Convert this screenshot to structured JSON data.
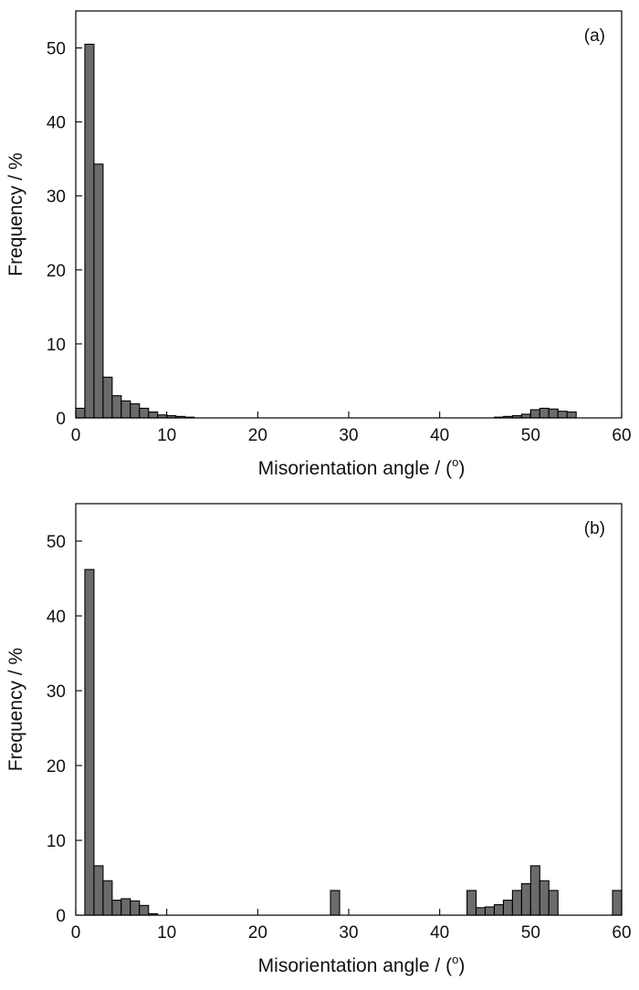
{
  "chart_data": [
    {
      "type": "bar",
      "panel_label": "(a)",
      "xlabel": "Misorientation angle / (",
      "xlabel_sup": "o",
      "xlabel_end": ")",
      "ylabel": "Frequency / %",
      "xlim": [
        0,
        60
      ],
      "ylim": [
        0,
        55
      ],
      "xticks": [
        0,
        10,
        20,
        30,
        40,
        50,
        60
      ],
      "yticks": [
        0,
        10,
        20,
        30,
        40,
        50
      ],
      "bin_width": 1,
      "x": [
        0.5,
        1.5,
        2.5,
        3.5,
        4.5,
        5.5,
        6.5,
        7.5,
        8.5,
        9.5,
        10.5,
        11.5,
        12.5,
        46.5,
        47.5,
        48.5,
        49.5,
        50.5,
        51.5,
        52.5,
        53.5,
        54.5
      ],
      "values": [
        1.3,
        50.5,
        34.3,
        5.5,
        3.0,
        2.3,
        1.9,
        1.3,
        0.8,
        0.4,
        0.3,
        0.2,
        0.1,
        0.1,
        0.2,
        0.3,
        0.5,
        1.1,
        1.3,
        1.2,
        0.9,
        0.8
      ]
    },
    {
      "type": "bar",
      "panel_label": "(b)",
      "xlabel": "Misorientation angle / (",
      "xlabel_sup": "o",
      "xlabel_end": ")",
      "ylabel": "Frequency / %",
      "xlim": [
        0,
        60
      ],
      "ylim": [
        0,
        55
      ],
      "xticks": [
        0,
        10,
        20,
        30,
        40,
        50,
        60
      ],
      "yticks": [
        0,
        10,
        20,
        30,
        40,
        50
      ],
      "bin_width": 1,
      "x": [
        1.5,
        2.5,
        3.5,
        4.5,
        5.5,
        6.5,
        7.5,
        8.5,
        28.5,
        43.5,
        44.5,
        45.5,
        46.5,
        47.5,
        48.5,
        49.5,
        50.5,
        51.5,
        52.5,
        59.5
      ],
      "values": [
        46.2,
        6.6,
        4.6,
        2.0,
        2.2,
        1.9,
        1.3,
        0.2,
        3.3,
        3.3,
        1.0,
        1.1,
        1.4,
        2.0,
        3.3,
        4.2,
        6.6,
        4.6,
        3.3,
        3.3
      ]
    }
  ]
}
